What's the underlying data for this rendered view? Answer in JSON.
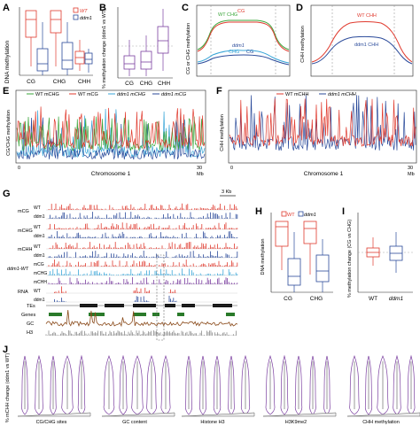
{
  "figure": {
    "panels": {
      "A": {
        "letter": "A",
        "ylabel": "DNA methylation",
        "legend": [
          "WT",
          "ddm1"
        ],
        "categories": [
          "CG",
          "CHG",
          "CHH"
        ],
        "yticks": [
          "0",
          "0.2",
          "0.4",
          "0.6",
          "0.8",
          "1"
        ]
      },
      "B": {
        "letter": "B",
        "ylabel": "% methylation change (ddm1 vs WT)",
        "categories": [
          "CG",
          "CHG",
          "CHH"
        ],
        "yticks": [
          "1.5",
          "1",
          "0.5",
          "0",
          "-0.5",
          "-1"
        ]
      },
      "C": {
        "letter": "C",
        "ylabel": "CG or CHG methylation",
        "labels": [
          "WT CHG",
          "CG",
          "ddm1",
          "CHG",
          "CG"
        ],
        "xticks": [
          "-4",
          "-3",
          "-2",
          "-1",
          "0",
          "1",
          "2",
          "3",
          "4",
          "-4",
          "-3",
          "-2",
          "-1",
          "0",
          "1",
          "2",
          "3",
          "4"
        ],
        "yticks": [
          "0",
          "0.2",
          "0.4",
          "0.6",
          "0.8",
          "1"
        ]
      },
      "D": {
        "letter": "D",
        "ylabel": "CHH methylation",
        "labels": [
          "WT CHH",
          "ddm1 CHH"
        ],
        "xticks": [
          "-4",
          "-3",
          "-2",
          "-1",
          "0",
          "1",
          "2",
          "3",
          "4",
          "-4",
          "-3",
          "-2",
          "-1",
          "0",
          "1",
          "2",
          "3",
          "4"
        ],
        "yticks": [
          "0",
          "0.02",
          "0.04",
          "0.06",
          "0.08",
          "0.1",
          "0.12"
        ]
      },
      "E": {
        "letter": "E",
        "ylabel": "CG/CHG methylation",
        "legend": [
          "WT mCHG",
          "WT mCG",
          "ddm1 mCHG",
          "ddm1 mCG"
        ],
        "xlabel": "Chromosome 1",
        "xticks": [
          "0",
          "30"
        ],
        "xunit": "Mb"
      },
      "F": {
        "letter": "F",
        "ylabel": "CHH methylation",
        "legend": [
          "WT mCHH",
          "ddm1 mCHH"
        ],
        "xlabel": "Chromosome 1",
        "xticks": [
          "0",
          "30"
        ],
        "xunit": "Mb"
      },
      "G": {
        "letter": "G",
        "scale": "3 Kb",
        "tracks": [
          "mCG",
          "mCHG",
          "mCHH",
          "ddm1-WT",
          "RNA",
          "TEs",
          "Genes",
          "GC",
          "H3"
        ],
        "subtracks": [
          "WT",
          "ddm1",
          "WT",
          "ddm1",
          "WT",
          "ddm1",
          "mCG",
          "mCHG",
          "mCHH",
          "WT",
          "ddm1"
        ]
      },
      "H": {
        "letter": "H",
        "ylabel": "DNA methylation",
        "legend": [
          "WT",
          "ddm1"
        ],
        "categories": [
          "CG",
          "CHG"
        ]
      },
      "I": {
        "letter": "I",
        "ylabel": "% methylation change (CG vs CHG)",
        "categories": [
          "WT",
          "ddm1"
        ]
      },
      "J": {
        "letter": "J",
        "ylabel": "% mCHH change (ddm1 vs WT)",
        "groups": [
          "CG/CHG sites",
          "GC content",
          "Histone H3",
          "H3K9me2",
          "CHH methylation"
        ]
      }
    },
    "colors": {
      "wt": "#e03a2e",
      "ddm1": "#2a4a9a",
      "wt_chg": "#3aa53a",
      "ddm1_chg": "#3aa6d8",
      "violin": "#7b3fa0"
    }
  }
}
